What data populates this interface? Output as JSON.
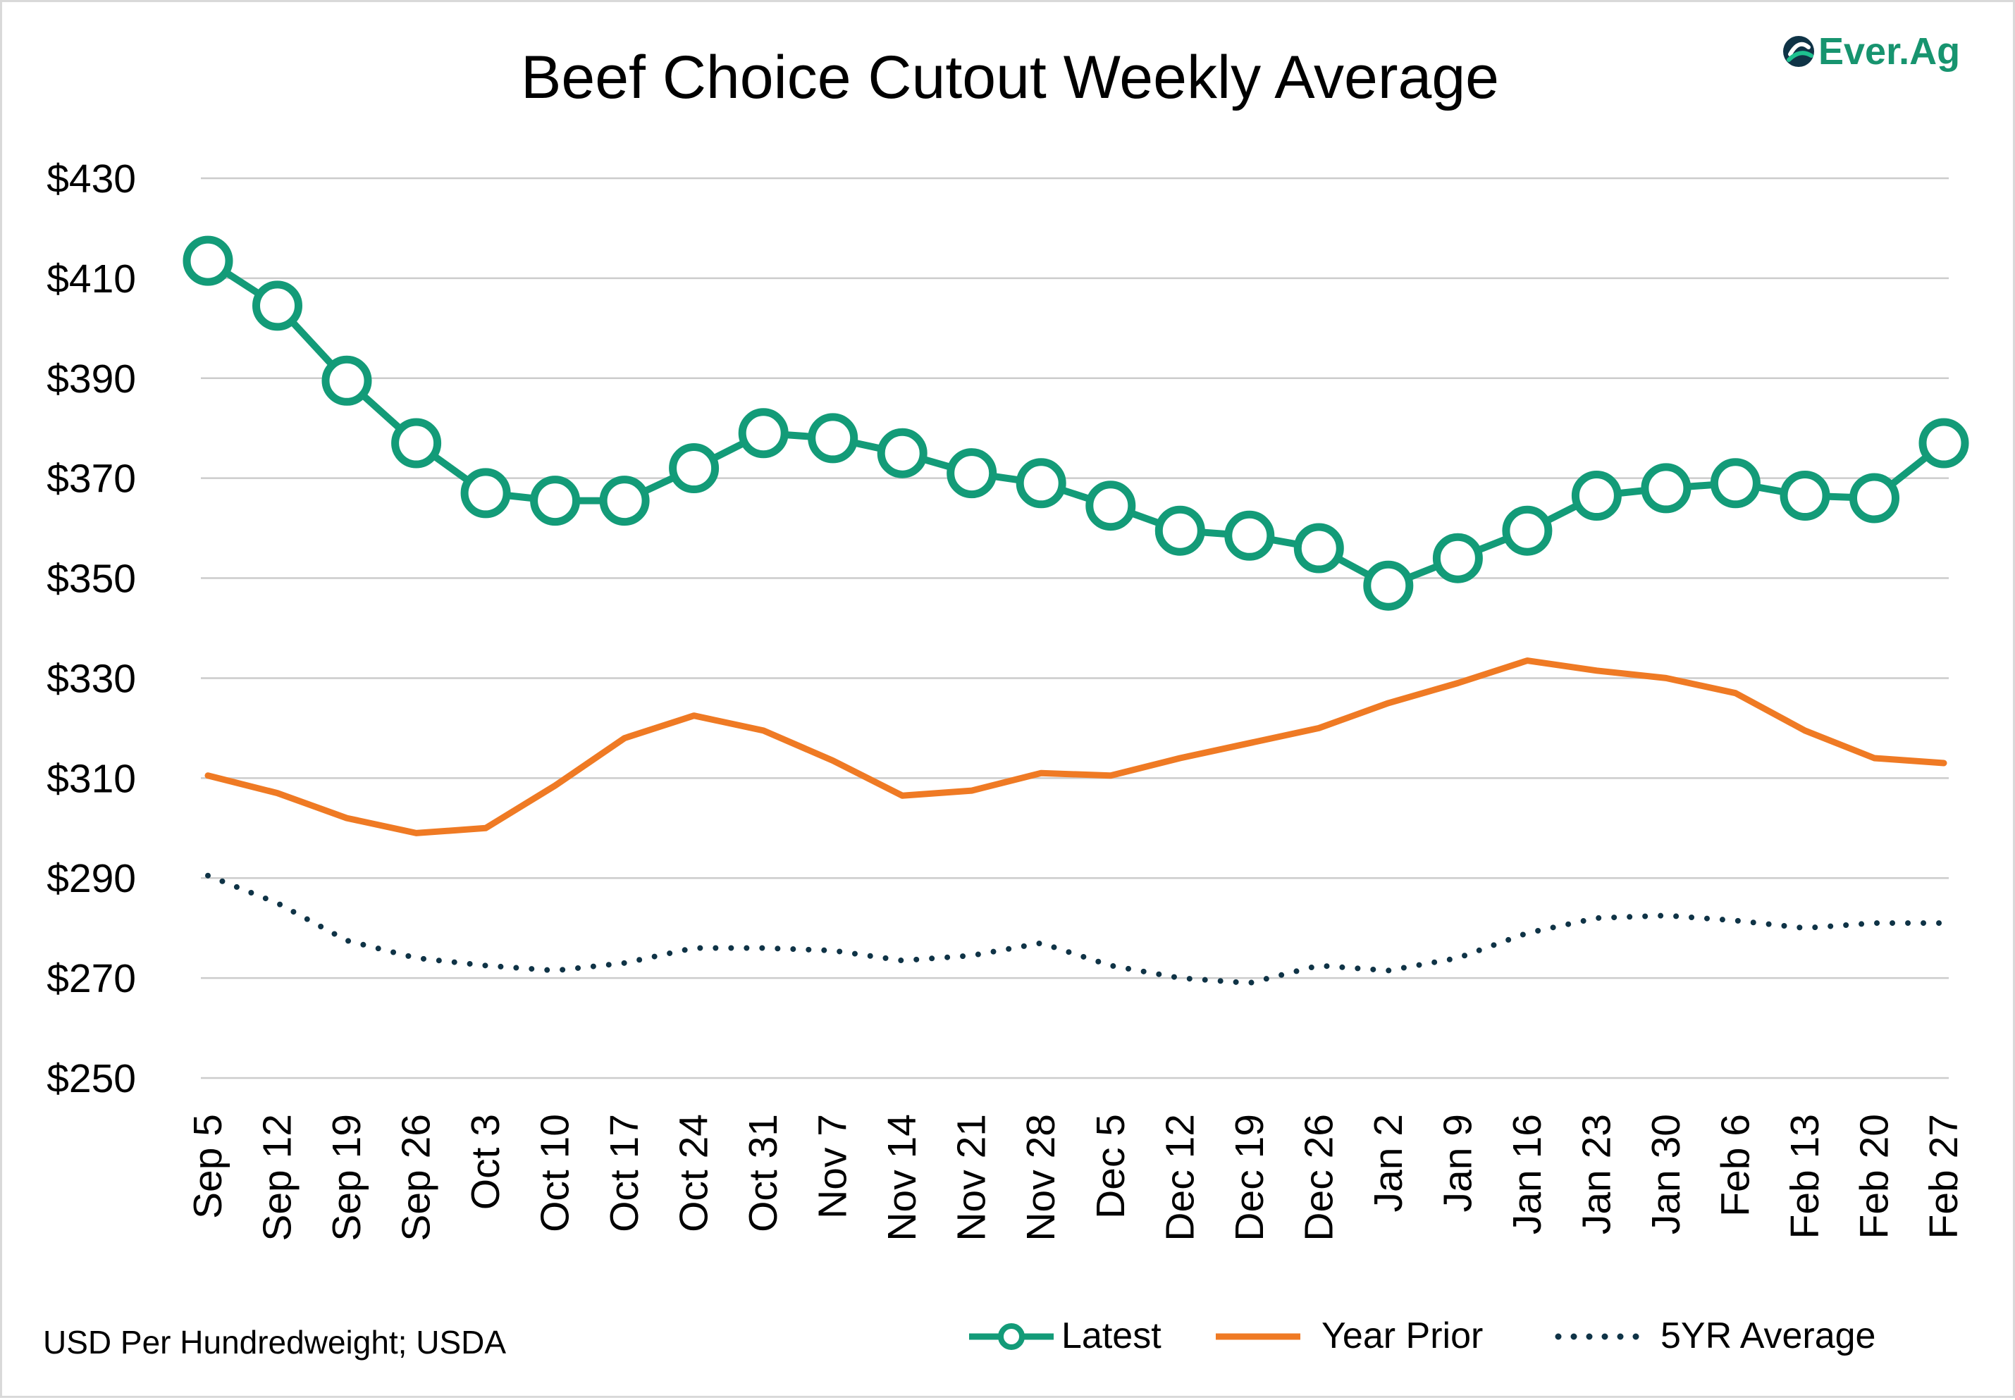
{
  "chart_data": {
    "type": "line",
    "title": "Beef Choice Cutout Weekly Average",
    "xlabel": "",
    "ylabel": "",
    "ylim": [
      250,
      430
    ],
    "y_ticks": [
      250,
      270,
      290,
      310,
      330,
      350,
      370,
      390,
      410,
      430
    ],
    "y_tick_labels": [
      "$250",
      "$270",
      "$290",
      "$310",
      "$330",
      "$350",
      "$370",
      "$390",
      "$410",
      "$430"
    ],
    "grid": true,
    "legend_placement": "bottom-right",
    "categories": [
      "Sep 5",
      "Sep 12",
      "Sep 19",
      "Sep 26",
      "Oct 3",
      "Oct 10",
      "Oct 17",
      "Oct 24",
      "Oct 31",
      "Nov 7",
      "Nov 14",
      "Nov 21",
      "Nov 28",
      "Dec 5",
      "Dec 12",
      "Dec 19",
      "Dec 26",
      "Jan 2",
      "Jan 9",
      "Jan 16",
      "Jan 23",
      "Jan 30",
      "Feb 6",
      "Feb 13",
      "Feb 20",
      "Feb 27"
    ],
    "series": [
      {
        "name": "Latest",
        "color": "#139b78",
        "style": "line-with-markers",
        "values": [
          413.5,
          404.5,
          389.5,
          377,
          367,
          365.5,
          365.5,
          372,
          379,
          378,
          375,
          371,
          369,
          364.5,
          359.5,
          358.5,
          356,
          348.5,
          354,
          359.5,
          366.5,
          368,
          369,
          366.5,
          366,
          377
        ]
      },
      {
        "name": "Year Prior",
        "color": "#ef7a24",
        "style": "solid",
        "values": [
          310.5,
          307,
          302,
          299,
          300,
          308.5,
          318,
          322.5,
          319.5,
          313.5,
          306.5,
          307.5,
          311,
          310.5,
          314,
          317,
          320,
          325,
          329,
          333.5,
          331.5,
          330,
          327,
          319.5,
          314,
          313
        ]
      },
      {
        "name": "5YR Average",
        "color": "#0f3346",
        "style": "dotted",
        "values": [
          290.5,
          285,
          277.5,
          274,
          272.5,
          271.5,
          273,
          276,
          276,
          275.5,
          273.5,
          274.5,
          277,
          272.5,
          270,
          269,
          272.5,
          271.5,
          274,
          279,
          282,
          282.5,
          281.5,
          280,
          281,
          281
        ]
      }
    ]
  },
  "footnote": "USD Per Hundredweight; USDA",
  "logo": {
    "text": "Ever.Ag",
    "color": "#17946f"
  },
  "colors": {
    "grid": "#cccccc",
    "text": "#000000",
    "frame": "#d9d9d9"
  }
}
